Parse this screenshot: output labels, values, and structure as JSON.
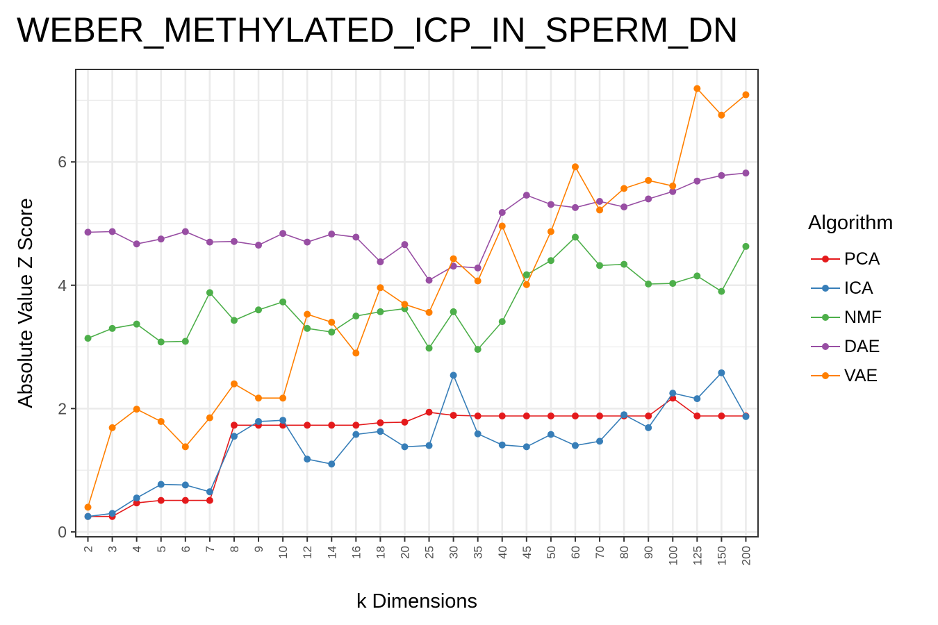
{
  "title": "WEBER_METHYLATED_ICP_IN_SPERM_DN",
  "chart_data": {
    "type": "line",
    "title": "WEBER_METHYLATED_ICP_IN_SPERM_DN",
    "xlabel": "k Dimensions",
    "ylabel": "Absolute Value Z Score",
    "categories": [
      "2",
      "3",
      "4",
      "5",
      "6",
      "7",
      "8",
      "9",
      "10",
      "12",
      "14",
      "16",
      "18",
      "20",
      "25",
      "30",
      "35",
      "40",
      "45",
      "50",
      "60",
      "70",
      "80",
      "90",
      "100",
      "125",
      "150",
      "200"
    ],
    "yticks": [
      0,
      2,
      4,
      6
    ],
    "ylim": [
      -0.08,
      7.5
    ],
    "grid": true,
    "legend_title": "Algorithm",
    "legend_position": "right",
    "series": [
      {
        "name": "PCA",
        "color": "#E41A1C",
        "values": [
          0.25,
          0.25,
          0.47,
          0.51,
          0.51,
          0.51,
          1.73,
          1.73,
          1.73,
          1.73,
          1.73,
          1.73,
          1.77,
          1.78,
          1.94,
          1.89,
          1.88,
          1.88,
          1.88,
          1.88,
          1.88,
          1.88,
          1.88,
          1.88,
          2.17,
          1.88,
          1.88,
          1.88
        ]
      },
      {
        "name": "ICA",
        "color": "#377EB8",
        "values": [
          0.25,
          0.3,
          0.55,
          0.77,
          0.76,
          0.65,
          1.55,
          1.79,
          1.81,
          1.18,
          1.1,
          1.58,
          1.63,
          1.38,
          1.4,
          2.54,
          1.59,
          1.41,
          1.38,
          1.58,
          1.4,
          1.47,
          1.9,
          1.69,
          2.25,
          2.16,
          2.58,
          1.87
        ]
      },
      {
        "name": "NMF",
        "color": "#4DAF4A",
        "values": [
          3.14,
          3.3,
          3.37,
          3.08,
          3.09,
          3.88,
          3.43,
          3.6,
          3.73,
          3.3,
          3.24,
          3.5,
          3.57,
          3.62,
          2.98,
          3.57,
          2.96,
          3.41,
          4.17,
          4.4,
          4.78,
          4.32,
          4.34,
          4.02,
          4.03,
          4.15,
          3.9,
          4.63
        ]
      },
      {
        "name": "DAE",
        "color": "#984EA3",
        "values": [
          4.86,
          4.87,
          4.67,
          4.75,
          4.87,
          4.7,
          4.71,
          4.65,
          4.84,
          4.7,
          4.83,
          4.78,
          4.38,
          4.66,
          4.08,
          4.31,
          4.28,
          5.18,
          5.46,
          5.31,
          5.26,
          5.36,
          5.27,
          5.4,
          5.52,
          5.69,
          5.78,
          5.82
        ]
      },
      {
        "name": "VAE",
        "color": "#FF7F00",
        "values": [
          0.4,
          1.69,
          1.99,
          1.79,
          1.38,
          1.85,
          2.4,
          2.17,
          2.17,
          3.53,
          3.4,
          2.9,
          3.96,
          3.69,
          3.56,
          4.43,
          4.07,
          4.96,
          4.01,
          4.87,
          5.92,
          5.22,
          5.57,
          5.7,
          5.61,
          7.19,
          6.76,
          7.09
        ]
      }
    ]
  }
}
